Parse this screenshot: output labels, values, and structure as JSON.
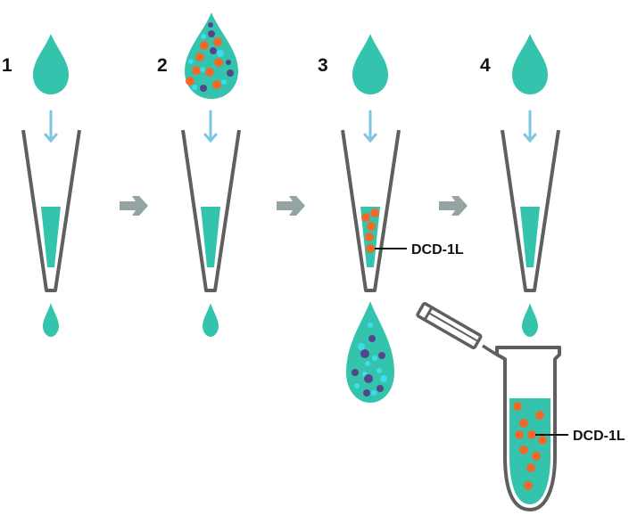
{
  "steps": [
    {
      "number": "1"
    },
    {
      "number": "2"
    },
    {
      "number": "3"
    },
    {
      "number": "4"
    }
  ],
  "labels": {
    "column_label": "DCD-1L",
    "tube_label": "DCD-1L"
  },
  "colors": {
    "liquid": "#34c3ad",
    "outline": "#5f5f5f",
    "flow_arrow": "#7dc6e2",
    "step_arrow": "#93a4a3",
    "target_particle": "#ee6a2b",
    "dark_particle": "#55468a",
    "light_particle": "#3fdcec"
  }
}
